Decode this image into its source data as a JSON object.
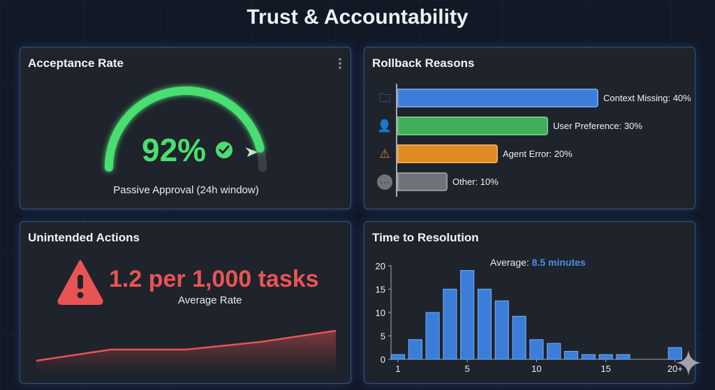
{
  "title": "Trust & Accountability",
  "acceptance": {
    "title": "Acceptance Rate",
    "value_label": "92%",
    "value": 0.92,
    "subtitle": "Passive Approval (24h window)",
    "menu_icon": "kebab-menu-icon",
    "status_icon": "check-circle-icon",
    "color": "#4ade70"
  },
  "rollback": {
    "title": "Rollback Reasons",
    "items": [
      {
        "label": "Context Missing: 40%",
        "value": 40,
        "icon": "folder-search-icon",
        "color": "#3b7dd8"
      },
      {
        "label": "User Preference: 30%",
        "value": 30,
        "icon": "user-check-icon",
        "color": "#3fae5a"
      },
      {
        "label": "Agent Error: 20%",
        "value": 20,
        "icon": "warning-icon",
        "color": "#e08a24"
      },
      {
        "label": "Other: 10%",
        "value": 10,
        "icon": "more-icon",
        "color": "#6f747c"
      }
    ]
  },
  "unintended": {
    "title": "Unintended Actions",
    "value": "1.2 per 1,000 tasks",
    "subtitle": "Average Rate",
    "icon": "warning-icon",
    "color": "#e85454",
    "trend": [
      16,
      32,
      32,
      43,
      59
    ]
  },
  "chart_data": {
    "type": "bar",
    "title": "Time to Resolution",
    "annotation_prefix": "Average:",
    "annotation_value": "8.5 minutes",
    "values": [
      1,
      4.2,
      10,
      15,
      19,
      15,
      12.5,
      9.2,
      4.2,
      3.4,
      1.7,
      1,
      1,
      1,
      0,
      0,
      2.5
    ],
    "x_tick_labels": {
      "0": "1",
      "4": "5",
      "8": "10",
      "12": "15",
      "16": "20+"
    },
    "y_ticks": [
      0,
      5,
      10,
      15,
      20
    ],
    "ylim": [
      0,
      20
    ],
    "color": "#3b7dd8"
  }
}
